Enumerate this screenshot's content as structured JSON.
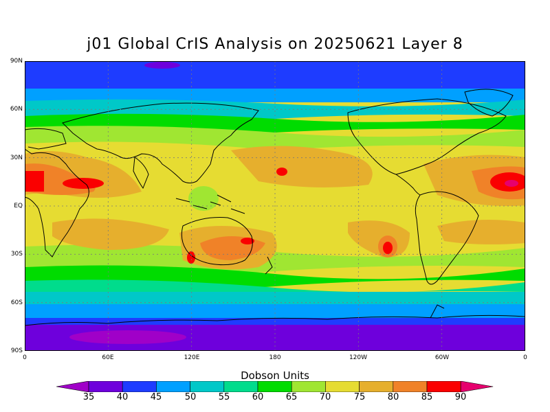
{
  "title": "j01 Global CrIS Analysis on 20250621 Layer 8",
  "colorbar": {
    "units_label": "Dobson Units",
    "levels": [
      "35",
      "40",
      "45",
      "50",
      "55",
      "60",
      "65",
      "70",
      "75",
      "80",
      "85",
      "90"
    ],
    "colors": [
      "#a000c8",
      "#6e00dc",
      "#1e3cff",
      "#00a0ff",
      "#00c8c8",
      "#00dc8c",
      "#00dc00",
      "#a0e632",
      "#e6dc32",
      "#e6af2d",
      "#f08228",
      "#fa0000",
      "#e6006e"
    ]
  },
  "axes": {
    "y_ticks": [
      "90N",
      "60N",
      "30N",
      "EQ",
      "30S",
      "60S",
      "90S"
    ],
    "x_ticks": [
      "0",
      "60E",
      "120E",
      "180",
      "120W",
      "60W",
      "0"
    ]
  },
  "map": {
    "projection": "equirectangular",
    "lon_range": [
      0,
      360
    ],
    "lat_range": [
      -90,
      90
    ],
    "gridlines": "dotted 30°"
  }
}
